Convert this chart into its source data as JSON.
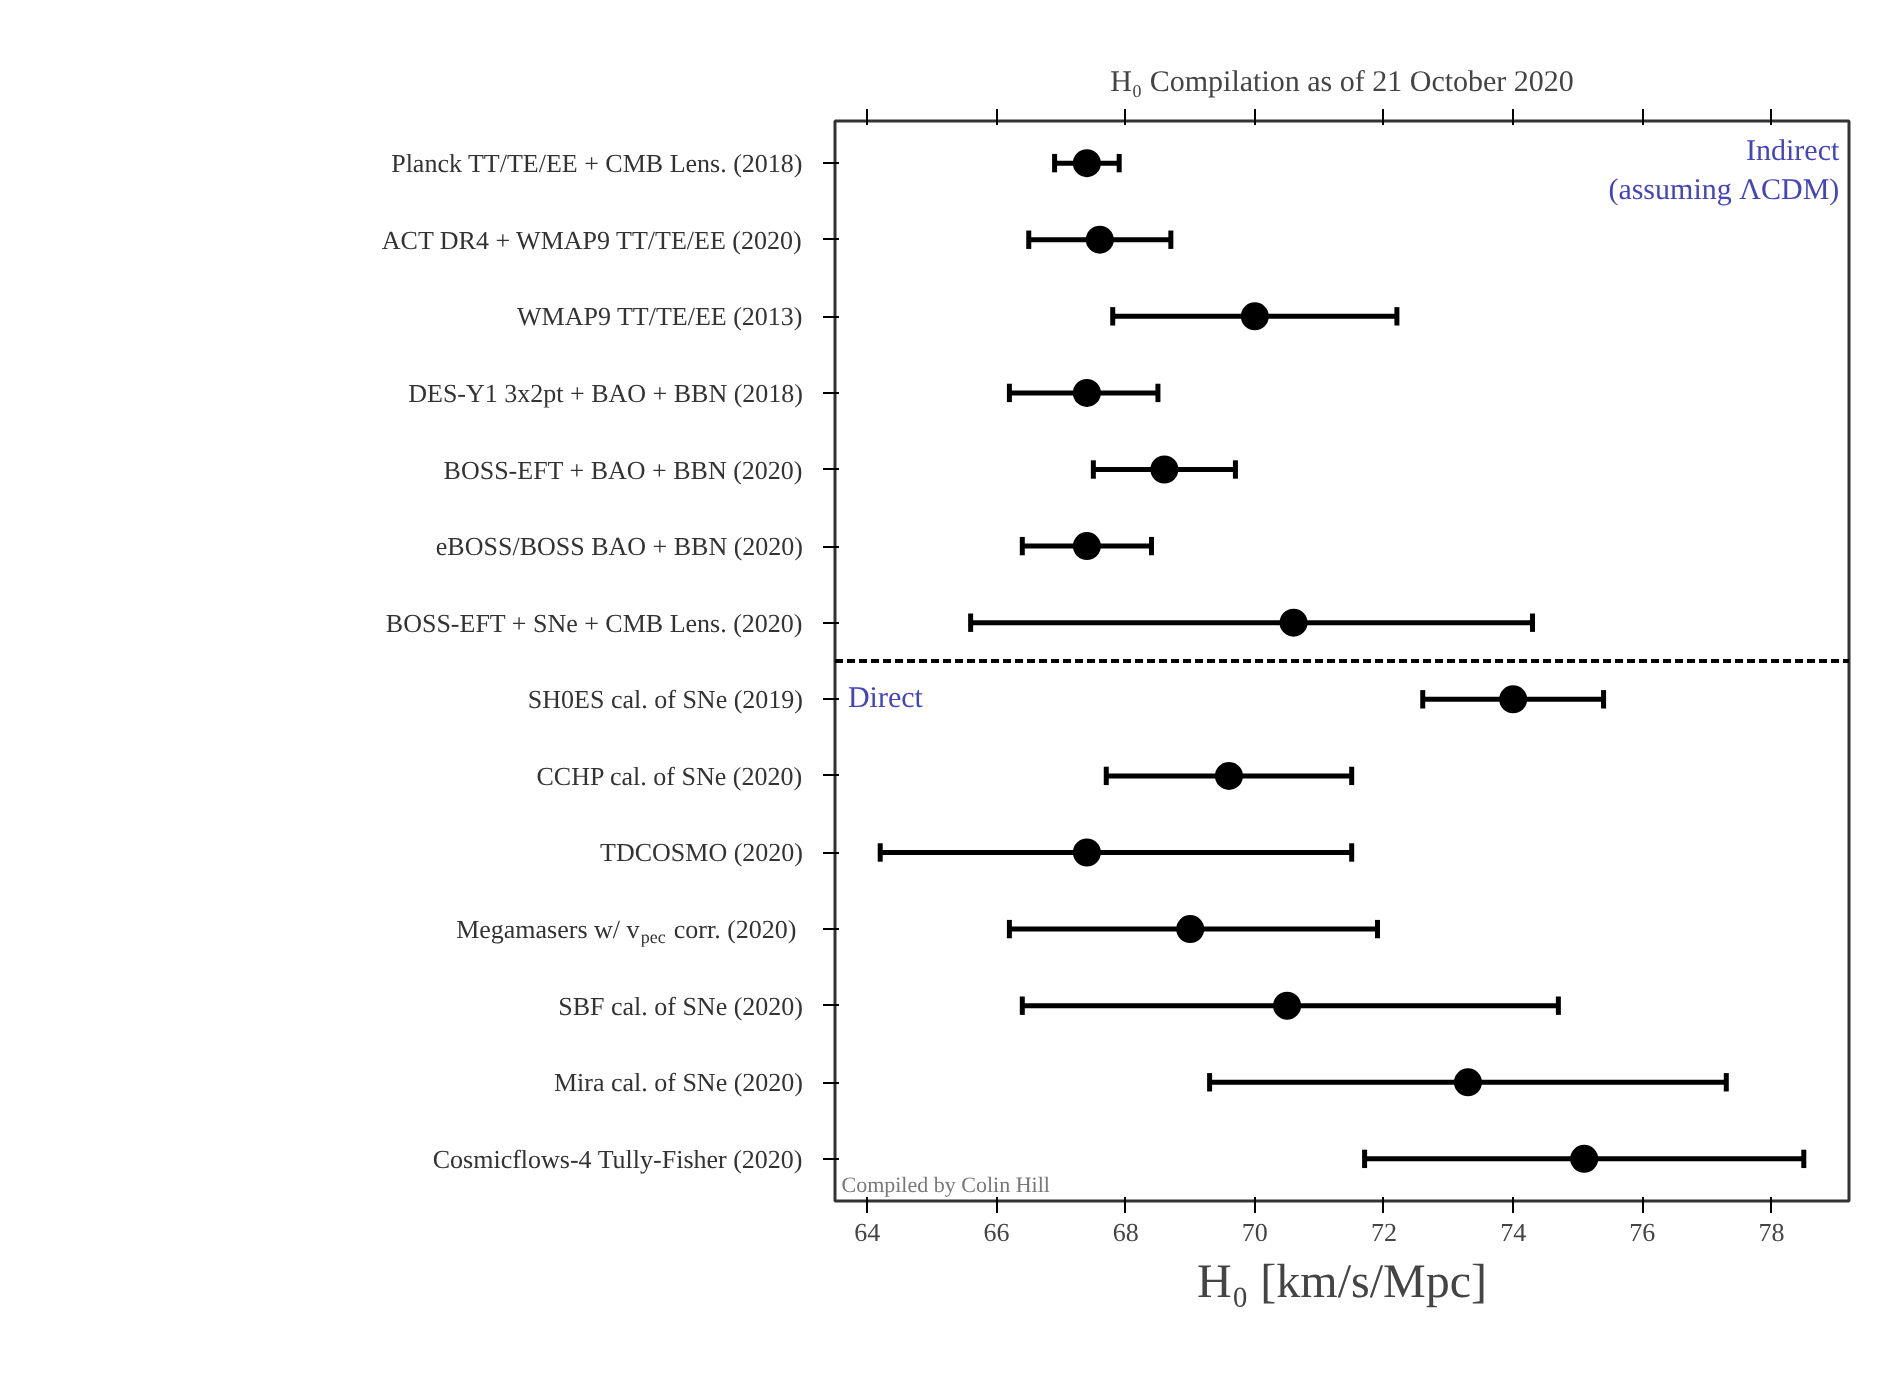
{
  "chart_data": {
    "type": "scatter",
    "orientation": "horizontal",
    "title": "H₀ Compilation as of 21 October 2020",
    "xlabel": "H₀ [km/s/Mpc]",
    "categories": [
      "Planck TT/TE/EE + CMB Lens. (2018)",
      "ACT DR4 + WMAP9 TT/TE/EE (2020)",
      "WMAP9 TT/TE/EE (2013)",
      "DES-Y1 3x2pt + BAO + BBN (2018)",
      "BOSS-EFT + BAO + BBN (2020)",
      "eBOSS/BOSS BAO + BBN (2020)",
      "BOSS-EFT + SNe + CMB Lens. (2020)",
      "SH0ES cal. of SNe (2019)",
      "CCHP cal. of SNe (2020)",
      "TDCOSMO (2020)",
      "Megamasers w/ v$_{pec}$ corr. (2020)",
      "SBF cal. of SNe (2020)",
      "Mira cal. of SNe (2020)",
      "Cosmicflows-4 Tully-Fisher (2020)"
    ],
    "series": [
      {
        "color": "#000000",
        "values": [
          67.4,
          67.6,
          70.0,
          67.4,
          68.6,
          67.4,
          70.6,
          74.0,
          69.6,
          67.4,
          69.0,
          70.5,
          73.3,
          75.1
        ],
        "errors": [
          [
            66.9,
            67.9
          ],
          [
            66.5,
            68.7
          ],
          [
            67.8,
            72.2
          ],
          [
            66.2,
            68.5
          ],
          [
            67.5,
            69.7
          ],
          [
            66.4,
            68.4
          ],
          [
            65.6,
            74.3
          ],
          [
            72.6,
            75.4
          ],
          [
            67.7,
            71.5
          ],
          [
            64.2,
            71.5
          ],
          [
            66.2,
            71.9
          ],
          [
            66.4,
            74.7
          ],
          [
            69.3,
            77.3
          ],
          [
            71.7,
            78.5
          ]
        ]
      }
    ],
    "xlim": [
      63.5,
      79.2
    ],
    "xticks": [
      64,
      66,
      68,
      70,
      72,
      74,
      76,
      78
    ],
    "annotations": [
      "Indirect\n(assuming ΛCDM)",
      "Direct",
      "Compiled by Colin Hill"
    ],
    "marker": "circle",
    "grid": false
  }
}
